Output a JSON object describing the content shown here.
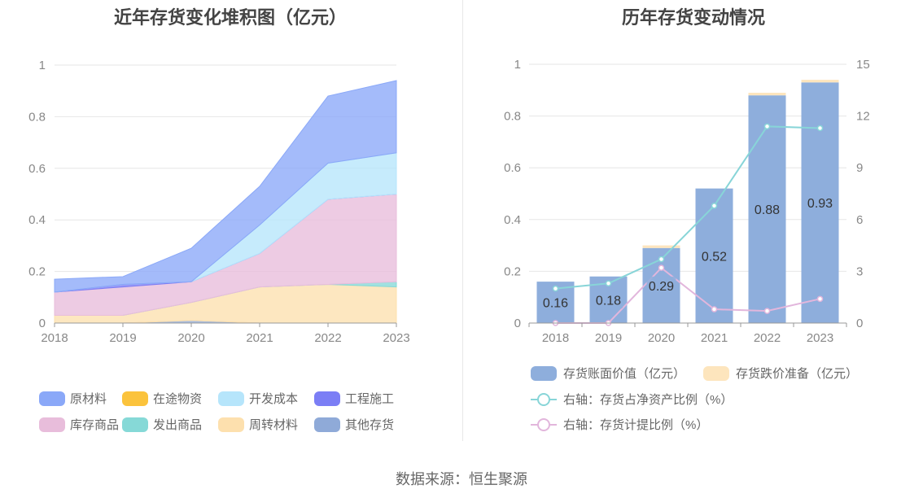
{
  "source_text": "数据来源：恒生聚源",
  "chart_data": [
    {
      "type": "area",
      "stacked": true,
      "title": "近年存货变化堆积图（亿元）",
      "categories": [
        "2018",
        "2019",
        "2020",
        "2021",
        "2022",
        "2023"
      ],
      "ylim": [
        0,
        1
      ],
      "yticks": [
        "0",
        "0.2",
        "0.4",
        "0.6",
        "0.8",
        "1"
      ],
      "grid": true,
      "legend_position": "bottom",
      "series": [
        {
          "name": "原材料",
          "color": "#8aa8f8",
          "values": [
            0.05,
            0.03,
            0.13,
            0.15,
            0.26,
            0.28
          ]
        },
        {
          "name": "在途物资",
          "color": "#fbc33c",
          "values": [
            0,
            0,
            0,
            0,
            0,
            0
          ]
        },
        {
          "name": "开发成本",
          "color": "#b6e5fb",
          "values": [
            0,
            0,
            0,
            0.11,
            0.14,
            0.16
          ]
        },
        {
          "name": "工程施工",
          "color": "#7b7ef5",
          "values": [
            0,
            0.01,
            0,
            0,
            0,
            0
          ]
        },
        {
          "name": "库存商品",
          "color": "#e8bddb",
          "values": [
            0.09,
            0.11,
            0.08,
            0.13,
            0.33,
            0.34
          ]
        },
        {
          "name": "发出商品",
          "color": "#86d9d7",
          "values": [
            0,
            0,
            0,
            0,
            0,
            0.02
          ]
        },
        {
          "name": "周转材料",
          "color": "#fde0ae",
          "values": [
            0.03,
            0.03,
            0.07,
            0.14,
            0.15,
            0.14
          ]
        },
        {
          "name": "其他存货",
          "color": "#8faad8",
          "values": [
            0,
            0,
            0.01,
            0,
            0,
            0
          ]
        }
      ]
    },
    {
      "type": "bar",
      "stacked": true,
      "title": "历年存货变动情况",
      "categories": [
        "2018",
        "2019",
        "2020",
        "2021",
        "2022",
        "2023"
      ],
      "ylim": [
        0,
        1
      ],
      "yticks": [
        "0",
        "0.2",
        "0.4",
        "0.6",
        "0.8",
        "1"
      ],
      "y2lim": [
        0,
        15
      ],
      "y2ticks": [
        "0",
        "3",
        "6",
        "9",
        "12",
        "15"
      ],
      "grid": true,
      "legend_position": "bottom",
      "bars": [
        {
          "name": "存货账面价值（亿元）",
          "color": "#8eaedc",
          "values": [
            0.16,
            0.18,
            0.29,
            0.52,
            0.88,
            0.93
          ],
          "labels": [
            "0.16",
            "0.18",
            "0.29",
            "0.52",
            "0.88",
            "0.93"
          ]
        },
        {
          "name": "存货跌价准备（亿元）",
          "color": "#fde5bd",
          "values": [
            0,
            0,
            0.01,
            0,
            0.01,
            0.01
          ]
        }
      ],
      "lines": [
        {
          "name": "右轴：存货占净资产比例（%）",
          "color": "#88d5d8",
          "values": [
            2.0,
            2.3,
            3.7,
            6.8,
            11.4,
            11.3
          ]
        },
        {
          "name": "右轴：存货计提比例（%）",
          "color": "#e2b6dc",
          "values": [
            0,
            0,
            3.2,
            0.8,
            0.7,
            1.4
          ]
        }
      ]
    }
  ]
}
